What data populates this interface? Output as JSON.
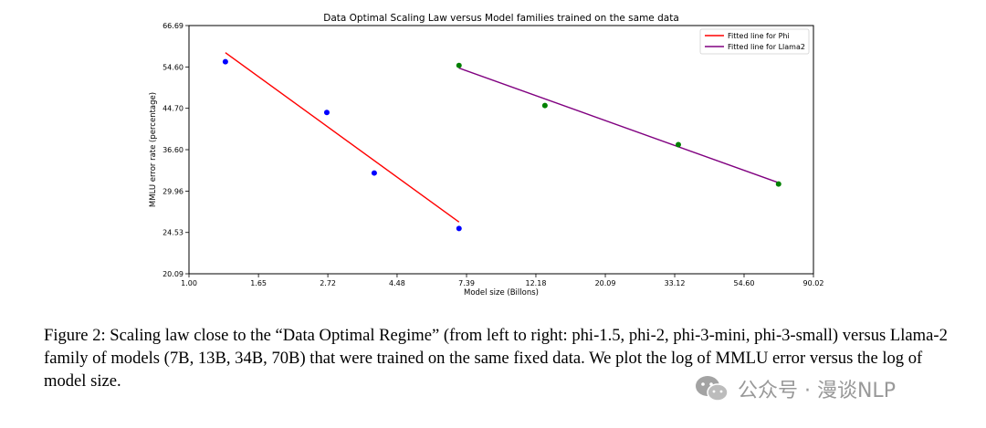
{
  "chart_data": {
    "type": "line",
    "title": "Data Optimal Scaling Law versus Model families trained on the same data",
    "xlabel": "Model size (Billons)",
    "ylabel": "MMLU error rate (percentage)",
    "x_scale": "log",
    "y_scale": "log",
    "xlim": [
      1.0,
      90.02
    ],
    "ylim": [
      20.09,
      66.69
    ],
    "x_ticks": [
      1.0,
      1.65,
      2.72,
      4.48,
      7.39,
      12.18,
      20.09,
      33.12,
      54.6,
      90.02
    ],
    "x_tick_labels": [
      "1.00",
      "1.65",
      "2.72",
      "4.48",
      "7.39",
      "12.18",
      "20.09",
      "33.12",
      "54.60",
      "90.02"
    ],
    "y_ticks": [
      20.09,
      24.53,
      29.96,
      36.6,
      44.7,
      54.6,
      66.69
    ],
    "y_tick_labels": [
      "20.09",
      "24.53",
      "29.96",
      "36.60",
      "44.70",
      "54.60",
      "66.69"
    ],
    "series": [
      {
        "name": "phi",
        "kind": "scatter",
        "color": "#0000ff",
        "points": [
          {
            "x": 1.3,
            "y": 56.0
          },
          {
            "x": 2.7,
            "y": 43.8
          },
          {
            "x": 3.8,
            "y": 32.7
          },
          {
            "x": 7.0,
            "y": 25.0
          }
        ]
      },
      {
        "name": "Llama2",
        "kind": "scatter",
        "color": "#008000",
        "points": [
          {
            "x": 7.0,
            "y": 55.0
          },
          {
            "x": 13.0,
            "y": 45.3
          },
          {
            "x": 34.0,
            "y": 37.5
          },
          {
            "x": 70.0,
            "y": 31.0
          }
        ]
      },
      {
        "name": "Fitted line for Phi",
        "kind": "line",
        "color": "#ff0000",
        "points": [
          {
            "x": 1.3,
            "y": 58.5
          },
          {
            "x": 7.0,
            "y": 25.8
          }
        ]
      },
      {
        "name": "Fitted line for Llama2",
        "kind": "line",
        "color": "#800080",
        "points": [
          {
            "x": 7.0,
            "y": 54.3
          },
          {
            "x": 70.0,
            "y": 31.2
          }
        ]
      }
    ],
    "legend": {
      "position": "top-right",
      "entries": [
        {
          "label": "Fitted line for Phi",
          "color": "#ff0000"
        },
        {
          "label": "Fitted line for Llama2",
          "color": "#800080"
        }
      ]
    },
    "grid": false
  },
  "caption": {
    "text": "Figure 2: Scaling law close to the “Data Optimal Regime” (from left to right: phi-1.5, phi-2, phi-3-mini, phi-3-small) versus Llama-2 family of models (7B, 13B, 34B, 70B) that were trained on the same fixed data. We plot the log of MMLU error versus the log of model size."
  },
  "watermark": {
    "text": "公众号 · 漫谈NLP",
    "logo_icon": "wechat-icon"
  }
}
